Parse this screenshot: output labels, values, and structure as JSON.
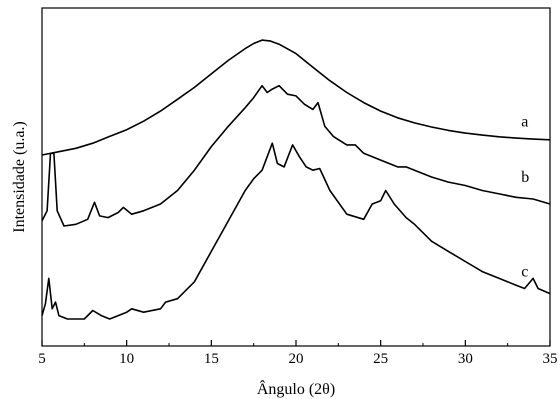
{
  "chart_data": {
    "type": "line",
    "xlabel": "Ângulo (2θ)",
    "ylabel": "Intensidade (u.a.)",
    "xlim": [
      5,
      35
    ],
    "ylim": [
      0,
      100
    ],
    "xticks": [
      5,
      10,
      15,
      20,
      25,
      30,
      35
    ],
    "grid": false,
    "legend": "none",
    "series": [
      {
        "name": "a",
        "x": [
          5,
          6,
          7,
          8,
          9,
          10,
          11,
          12,
          13,
          14,
          15,
          16,
          17,
          17.5,
          18,
          18.5,
          19,
          20,
          21,
          22,
          23,
          24,
          25,
          26,
          27,
          28,
          29,
          30,
          31,
          32,
          33,
          34,
          35
        ],
        "y": [
          56.5,
          57.5,
          58.5,
          60,
          62,
          64,
          66.5,
          69.5,
          73,
          76.5,
          80.5,
          84.5,
          88,
          89.5,
          90.5,
          90.2,
          89.3,
          86.5,
          82.5,
          78.5,
          75,
          72,
          69.5,
          67.5,
          66,
          64.8,
          63.8,
          63,
          62.4,
          61.9,
          61.5,
          61.2,
          61
        ]
      },
      {
        "name": "b",
        "x": [
          5,
          5.3,
          5.5,
          5.7,
          5.9,
          6.3,
          7,
          7.7,
          8.1,
          8.4,
          8.9,
          9.5,
          9.8,
          10.3,
          11,
          12,
          13,
          14,
          15,
          16,
          17,
          17.5,
          18,
          18.3,
          18.6,
          19,
          19.5,
          20,
          20.5,
          21,
          21.3,
          21.7,
          22.2,
          23,
          23.5,
          24,
          25,
          26,
          26.5,
          27,
          28,
          29,
          30,
          31,
          32,
          33,
          34,
          35
        ],
        "y": [
          37,
          40,
          57,
          57,
          40,
          35.5,
          36,
          37.5,
          42.5,
          38.5,
          38,
          39.5,
          41,
          39,
          40,
          42,
          46,
          52,
          59,
          65,
          70.5,
          73.5,
          77,
          75,
          76,
          77,
          74.5,
          74,
          71.5,
          70,
          72,
          65,
          62,
          59.5,
          59.5,
          57,
          55,
          53,
          53,
          52,
          50,
          48.5,
          47.5,
          46,
          45,
          44,
          43.5,
          42
        ]
      },
      {
        "name": "c",
        "x": [
          5,
          5.2,
          5.4,
          5.6,
          5.8,
          6,
          6.5,
          7.5,
          8,
          8.5,
          9,
          10,
          10.3,
          11,
          12,
          12.3,
          13,
          14,
          15,
          16,
          17,
          17.5,
          18,
          18.3,
          18.6,
          18.9,
          19.3,
          19.8,
          20.2,
          20.6,
          21,
          21.4,
          22,
          23,
          24,
          24.5,
          25,
          25.3,
          25.8,
          26.5,
          27,
          28,
          29,
          30,
          31,
          32,
          33,
          33.5,
          34,
          34.3,
          35
        ],
        "y": [
          9,
          12.5,
          20,
          11,
          13,
          9,
          8,
          8,
          10.5,
          9,
          8,
          10,
          11,
          10,
          11,
          13,
          14,
          19,
          28,
          37,
          46,
          49.5,
          52,
          56,
          60,
          54,
          53,
          59.5,
          56,
          53,
          52,
          52.5,
          46,
          39,
          37.5,
          42,
          43,
          46,
          42,
          38,
          36,
          31,
          28,
          25,
          22,
          20,
          18,
          17,
          20,
          17,
          15.5
        ]
      }
    ],
    "curve_labels": [
      {
        "text": "a",
        "x": 33.3,
        "y": 65
      },
      {
        "text": "b",
        "x": 33.3,
        "y": 48.5
      },
      {
        "text": "c",
        "x": 33.3,
        "y": 20.5
      }
    ]
  }
}
